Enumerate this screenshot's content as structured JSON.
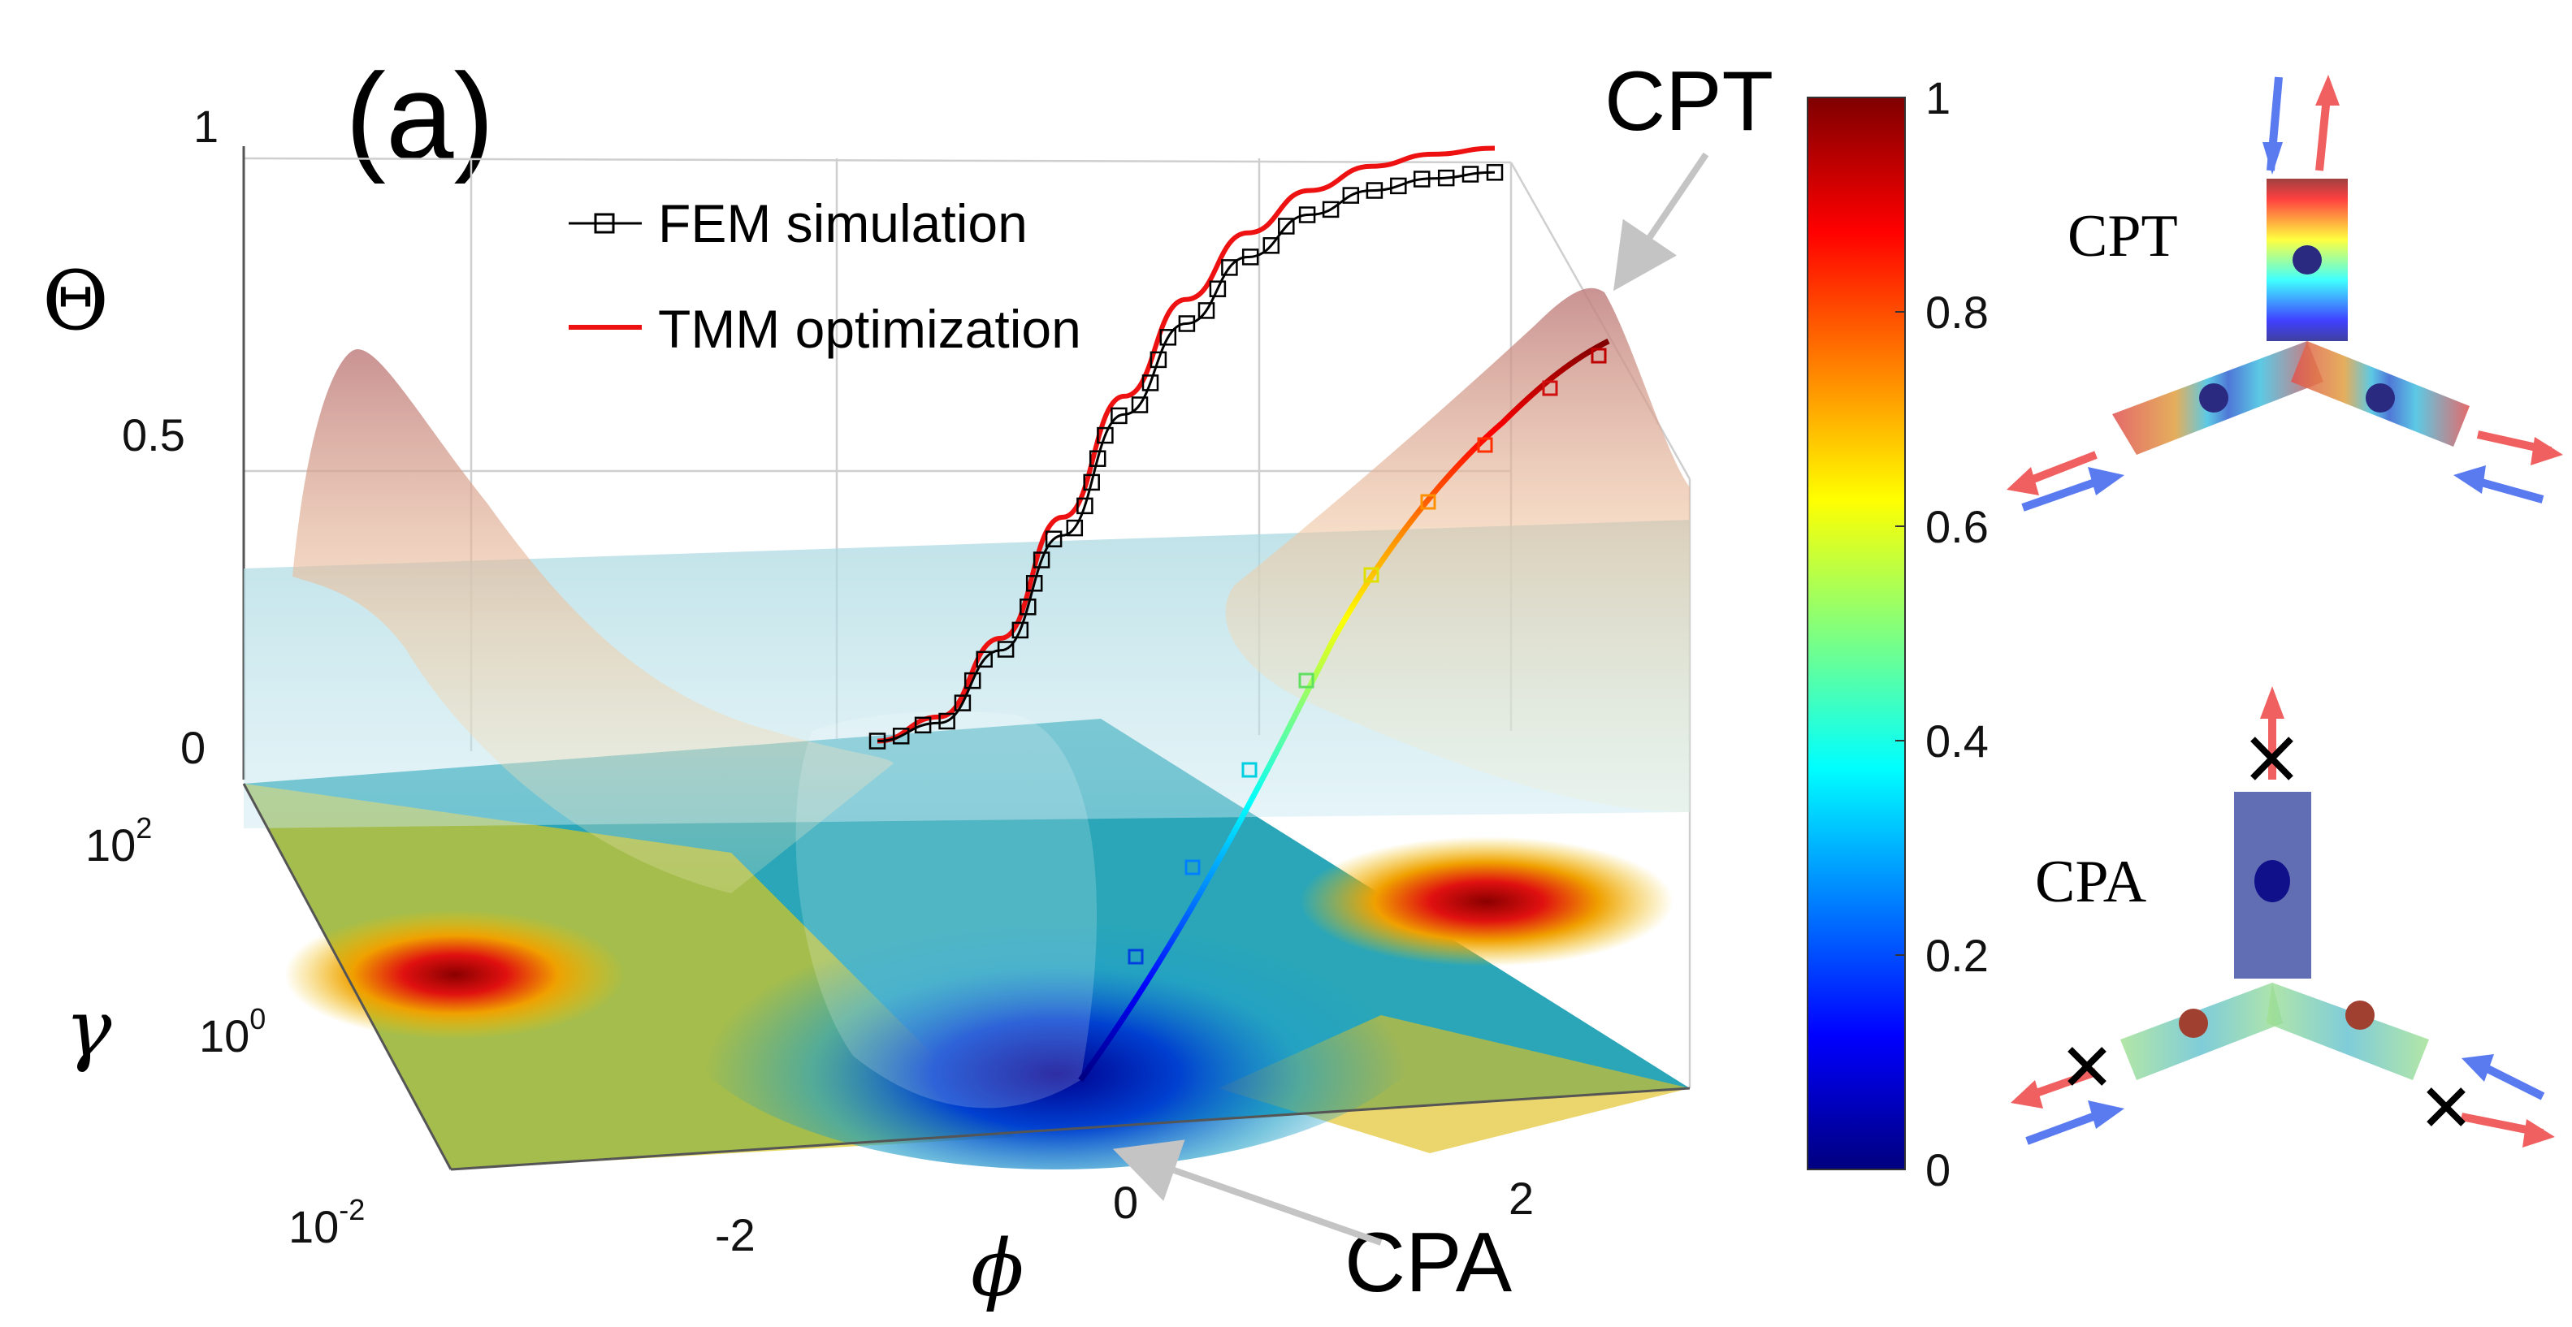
{
  "panel_label": "(a)",
  "chart_data": {
    "type": "surface3d",
    "zlabel": "Θ",
    "xlabel": "ϕ",
    "ylabel": "γ",
    "zlim": [
      0,
      1
    ],
    "z_ticks": [
      "0",
      "0.5",
      "1"
    ],
    "x_ticks": [
      "-2",
      "0",
      "2"
    ],
    "y_ticks": [
      {
        "base": "10",
        "exp": "2"
      },
      {
        "base": "10",
        "exp": "0"
      },
      {
        "base": "10",
        "exp": "-2"
      }
    ],
    "colorbar": {
      "ticks": [
        "0",
        "0.2",
        "0.4",
        "0.6",
        "0.8",
        "1"
      ],
      "range": [
        0,
        1
      ],
      "colormap": "jet"
    },
    "legend": [
      {
        "label": "FEM simulation",
        "marker": "square",
        "color": "#000000"
      },
      {
        "label": "TMM optimization",
        "marker": "line",
        "color": "#ee1111"
      }
    ],
    "series": [
      {
        "name": "TMM optimization",
        "phi": [
          -0.6,
          -0.3,
          0,
          0.3,
          0.6,
          0.9,
          1.2,
          1.5,
          1.8,
          2.1,
          2.4
        ],
        "theta": [
          0.01,
          0.05,
          0.18,
          0.38,
          0.58,
          0.74,
          0.85,
          0.92,
          0.96,
          0.98,
          0.99
        ]
      },
      {
        "name": "FEM simulation",
        "phi": [
          -0.6,
          -0.3,
          0,
          0.3,
          0.6,
          0.9,
          1.2,
          1.5,
          1.8,
          2.1,
          2.4
        ],
        "theta": [
          0.01,
          0.04,
          0.16,
          0.35,
          0.55,
          0.7,
          0.81,
          0.88,
          0.92,
          0.94,
          0.95
        ]
      }
    ],
    "annotations": [
      {
        "text": "CPT",
        "points_to": "surface maximum"
      },
      {
        "text": "CPA",
        "points_to": "surface minimum"
      }
    ]
  },
  "insets": [
    {
      "label": "CPT"
    },
    {
      "label": "CPA"
    }
  ]
}
